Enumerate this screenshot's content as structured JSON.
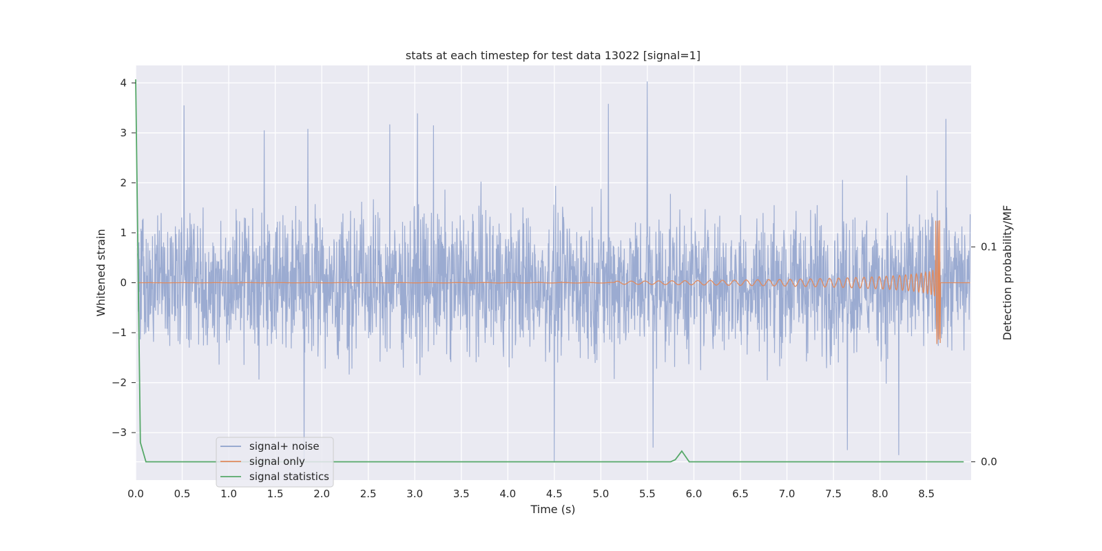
{
  "chart_data": {
    "type": "line",
    "title": "stats at each timestep for test data 13022 [signal=1]",
    "xlabel": "Time (s)",
    "ylabel": "Whitened strain",
    "y2label": "Detection probability/MF",
    "xlim": [
      0.0,
      8.98
    ],
    "ylim": [
      -3.95,
      4.35
    ],
    "y2lim": [
      -0.0085,
      0.1845
    ],
    "xticks": [
      "0.0",
      "0.5",
      "1.0",
      "1.5",
      "2.0",
      "2.5",
      "3.0",
      "3.5",
      "4.0",
      "4.5",
      "5.0",
      "5.5",
      "6.0",
      "6.5",
      "7.0",
      "7.5",
      "8.0",
      "8.5"
    ],
    "yticks": [
      "4",
      "3",
      "2",
      "1",
      "0",
      "−1",
      "−2",
      "−3"
    ],
    "y2ticks": [
      "0.1",
      "0.0"
    ],
    "grid": true,
    "legend_position": "lower-left",
    "series": [
      {
        "name": "signal+ noise",
        "color": "#8da0cb",
        "axis": "left",
        "description": "whitened strain noise, roughly ±2 with spikes",
        "peaks": [
          {
            "x": 0.52,
            "y": 3.55
          },
          {
            "x": 1.38,
            "y": 3.05
          },
          {
            "x": 1.85,
            "y": 3.08
          },
          {
            "x": 2.73,
            "y": 3.17
          },
          {
            "x": 3.03,
            "y": 3.39
          },
          {
            "x": 3.2,
            "y": 3.15
          },
          {
            "x": 5.08,
            "y": 3.58
          },
          {
            "x": 5.5,
            "y": 4.03
          },
          {
            "x": 8.71,
            "y": 3.28
          }
        ],
        "troughs": [
          {
            "x": 1.81,
            "y": -3.55
          },
          {
            "x": 4.5,
            "y": -3.6
          },
          {
            "x": 5.56,
            "y": -3.3
          },
          {
            "x": 7.65,
            "y": -3.35
          },
          {
            "x": 8.2,
            "y": -3.45
          }
        ]
      },
      {
        "name": "signal only",
        "color": "#e08a5e",
        "axis": "left",
        "description": "chirp signal growing toward merger near 8.65 s",
        "merger_time": 8.65,
        "peak_amplitude": 1.25
      },
      {
        "name": "signal statistics",
        "color": "#55a868",
        "axis": "right",
        "points": [
          [
            0.0,
            0.178
          ],
          [
            0.05,
            0.009
          ],
          [
            0.11,
            0.0
          ],
          [
            5.75,
            0.0
          ],
          [
            5.8,
            0.001
          ],
          [
            5.87,
            0.005
          ],
          [
            5.95,
            0.0
          ],
          [
            8.9,
            0.0
          ]
        ]
      }
    ]
  }
}
